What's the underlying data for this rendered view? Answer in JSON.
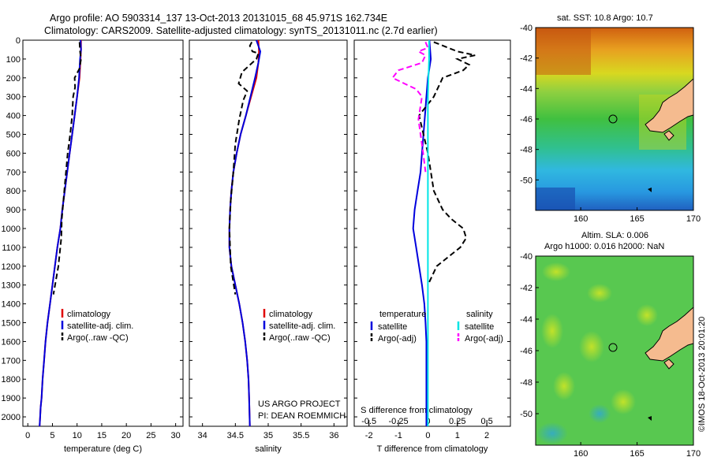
{
  "title_line1": "Argo profile: AO 5903314_137 13-Oct-2013 20131015_68 45.971S 162.734E",
  "title_line2": "Climatology: CARS2009. Satellite-adjusted climatology: synTS_20131011.nc (2.7d earlier)",
  "credit": "©IMOS 18-Oct-2013 20:01:20",
  "project_line1": "US ARGO PROJECT",
  "project_line2": "PI: DEAN ROEMMICH",
  "colors": {
    "climatology": "#e00000",
    "satellite": "#0000dd",
    "argo": "#000000",
    "sat_salinity": "#00e5e5",
    "argo_salinity": "#ff00ff",
    "land": "#f5bb8f"
  },
  "chart_data": [
    {
      "type": "line",
      "xlabel": "temperature (deg C)",
      "ylabel": "",
      "xlim": [
        -1,
        31.5
      ],
      "ylim": [
        2050,
        0
      ],
      "xticks": [
        0,
        5,
        10,
        15,
        20,
        25,
        30
      ],
      "yticks": [
        0,
        100,
        200,
        300,
        400,
        500,
        600,
        700,
        800,
        900,
        1000,
        1100,
        1200,
        1300,
        1400,
        1500,
        1600,
        1700,
        1800,
        1900,
        2000
      ],
      "legend": [
        "climatology",
        "satellite-adj. clim.",
        "Argo(..raw -QC)"
      ],
      "legend_position": "lower-right",
      "series": [
        {
          "name": "climatology",
          "style": "solid",
          "x": [
            10.8,
            10.8,
            10.7,
            10.5,
            10.0,
            9.5,
            9.0,
            8.5,
            8.0,
            7.5,
            7.0,
            6.6,
            6.0,
            5.5,
            5.0,
            4.5,
            4.0,
            3.6,
            3.3,
            3.0,
            2.8,
            2.6,
            2.5,
            2.4
          ],
          "y": [
            0,
            50,
            100,
            200,
            300,
            400,
            500,
            600,
            700,
            800,
            900,
            1000,
            1100,
            1200,
            1300,
            1400,
            1500,
            1600,
            1700,
            1800,
            1900,
            1950,
            2000,
            2050
          ]
        },
        {
          "name": "satellite-adj. clim.",
          "style": "solid",
          "x": [
            10.7,
            10.8,
            10.6,
            10.4,
            10.0,
            9.5,
            9.0,
            8.5,
            8.0,
            7.5,
            7.0,
            6.6,
            6.0,
            5.5,
            5.0,
            4.5,
            4.0,
            3.6,
            3.3,
            3.0,
            2.8,
            2.6,
            2.5,
            2.4
          ],
          "y": [
            0,
            50,
            100,
            200,
            300,
            400,
            500,
            600,
            700,
            800,
            900,
            1000,
            1100,
            1200,
            1300,
            1400,
            1500,
            1600,
            1700,
            1800,
            1900,
            1950,
            2000,
            2050
          ]
        },
        {
          "name": "Argo(..raw -QC)",
          "style": "dashed",
          "x": [
            10.5,
            10.6,
            10.8,
            10.5,
            9.5,
            9.6,
            9.2,
            9.0,
            8.6,
            8.1,
            7.4,
            6.9,
            6.8,
            6.2,
            5.2
          ],
          "y": [
            10,
            60,
            100,
            150,
            200,
            250,
            300,
            400,
            500,
            600,
            800,
            950,
            1050,
            1200,
            1350
          ]
        }
      ]
    },
    {
      "type": "line",
      "xlabel": "salinity",
      "ylabel": "",
      "xlim": [
        33.8,
        36.2
      ],
      "ylim": [
        2050,
        0
      ],
      "xticks": [
        34,
        34.5,
        35,
        35.5,
        36
      ],
      "yticks": [
        0,
        100,
        200,
        300,
        400,
        500,
        600,
        700,
        800,
        900,
        1000,
        1100,
        1200,
        1300,
        1400,
        1500,
        1600,
        1700,
        1800,
        1900,
        2000
      ],
      "legend": [
        "climatology",
        "satellite-adj. clim.",
        "Argo(..raw -QC)"
      ],
      "legend_position": "lower-right",
      "series": [
        {
          "name": "climatology",
          "style": "solid",
          "x": [
            34.85,
            34.86,
            34.85,
            34.82,
            34.74,
            34.66,
            34.58,
            34.52,
            34.47,
            34.44,
            34.42,
            34.41,
            34.41,
            34.44,
            34.5,
            34.56,
            34.61,
            34.65,
            34.68,
            34.7,
            34.71,
            34.72
          ],
          "y": [
            0,
            60,
            120,
            200,
            300,
            400,
            500,
            600,
            700,
            800,
            900,
            1000,
            1100,
            1200,
            1300,
            1400,
            1500,
            1600,
            1700,
            1800,
            1900,
            2050
          ]
        },
        {
          "name": "satellite-adj. clim.",
          "style": "solid",
          "x": [
            34.82,
            34.88,
            34.85,
            34.8,
            34.73,
            34.66,
            34.58,
            34.52,
            34.47,
            34.44,
            34.42,
            34.41,
            34.41,
            34.44,
            34.5,
            34.56,
            34.61,
            34.65,
            34.68,
            34.7,
            34.71,
            34.72
          ],
          "y": [
            0,
            60,
            120,
            200,
            300,
            400,
            500,
            600,
            700,
            800,
            900,
            1000,
            1100,
            1200,
            1300,
            1400,
            1500,
            1600,
            1700,
            1800,
            1900,
            2050
          ]
        },
        {
          "name": "Argo(..raw -QC)",
          "style": "dashed",
          "x": [
            34.75,
            34.72,
            34.76,
            34.85,
            34.82,
            34.6,
            34.55,
            34.68,
            34.62,
            34.56,
            34.5,
            34.47,
            34.43,
            34.41,
            34.43,
            34.5
          ],
          "y": [
            10,
            30,
            60,
            70,
            100,
            170,
            230,
            270,
            320,
            420,
            550,
            700,
            850,
            1000,
            1200,
            1350
          ]
        }
      ]
    },
    {
      "type": "line",
      "xlabel": "T difference from climatology",
      "x2label": "S difference from climatology",
      "ylabel": "",
      "xlim": [
        -2.5,
        2.8
      ],
      "x2lim": [
        -0.625,
        0.7
      ],
      "ylim": [
        2050,
        0
      ],
      "xticks": [
        -2,
        -1,
        0,
        1,
        2
      ],
      "x2ticks": [
        -0.5,
        -0.25,
        0,
        0.25,
        0.5
      ],
      "x2tick_labels": [
        "-0.5",
        "-0.25",
        "0",
        "0.25",
        "0.5"
      ],
      "yticks": [
        0,
        100,
        200,
        300,
        400,
        500,
        600,
        700,
        800,
        900,
        1000,
        1100,
        1200,
        1300,
        1400,
        1500,
        1600,
        1700,
        1800,
        1900,
        2000
      ],
      "legend_groups": [
        {
          "heading": "temperature",
          "items": [
            "satellite",
            "Argo(-adj)"
          ]
        },
        {
          "heading": "salinity",
          "items": [
            "satellite",
            "Argo(-adj)"
          ]
        }
      ],
      "legend_position": "lower-center",
      "series": [
        {
          "name": "temperature satellite",
          "axis": "T",
          "style": "solid",
          "x": [
            0.05,
            0.1,
            0.0,
            -0.05,
            -0.1,
            -0.15,
            -0.2,
            -0.25,
            -0.35,
            -0.45,
            -0.5,
            -0.4,
            -0.3,
            -0.2,
            -0.12,
            -0.08,
            -0.05,
            -0.05,
            -0.05,
            -0.05,
            -0.05,
            -0.05
          ],
          "y": [
            0,
            100,
            200,
            300,
            400,
            500,
            600,
            700,
            800,
            900,
            1000,
            1100,
            1200,
            1300,
            1400,
            1500,
            1600,
            1700,
            1800,
            1900,
            2000,
            2050
          ]
        },
        {
          "name": "temperature Argo(-adj)",
          "axis": "T",
          "style": "dashed",
          "x": [
            0.2,
            1.0,
            1.6,
            1.0,
            1.4,
            1.2,
            0.5,
            0.2,
            -0.3,
            0.0,
            0.2,
            0.5,
            0.8,
            1.2,
            1.3,
            1.1,
            0.7,
            0.3,
            0.0
          ],
          "y": [
            10,
            60,
            80,
            100,
            130,
            160,
            200,
            300,
            400,
            600,
            800,
            900,
            950,
            1000,
            1050,
            1100,
            1150,
            1200,
            1300
          ]
        },
        {
          "name": "salinity satellite",
          "axis": "S",
          "style": "solid",
          "x": [
            0.01,
            0.01,
            0.005,
            0.0,
            0.0,
            0.0,
            0.0,
            0.0,
            0.0,
            0.0,
            0.0,
            0.0,
            0.0,
            0.0,
            0.0,
            0.0
          ],
          "y": [
            0,
            100,
            200,
            300,
            400,
            500,
            600,
            800,
            1000,
            1200,
            1400,
            1600,
            1800,
            1900,
            2000,
            2050
          ]
        },
        {
          "name": "salinity Argo(-adj)",
          "axis": "S",
          "style": "dashed",
          "x": [
            -0.02,
            0.0,
            -0.08,
            -0.02,
            -0.05,
            -0.25,
            -0.3,
            -0.2,
            -0.1,
            -0.05,
            -0.08,
            -0.04,
            -0.02
          ],
          "y": [
            10,
            40,
            60,
            80,
            120,
            160,
            200,
            230,
            260,
            300,
            420,
            600,
            700
          ]
        }
      ]
    },
    {
      "type": "heatmap",
      "title": "sat. SST: 10.8 Argo: 10.7",
      "xlim": [
        156,
        170
      ],
      "ylim": [
        -52,
        -40
      ],
      "xticks": [
        160,
        165,
        170
      ],
      "yticks": [
        -40,
        -42,
        -44,
        -46,
        -48,
        -50
      ],
      "argo_position": {
        "lon": 162.734,
        "lat": -45.971
      }
    },
    {
      "type": "heatmap",
      "title": "Altim. SLA: 0.006",
      "subtitle": "Argo h1000: 0.016 h2000: NaN",
      "xlim": [
        156,
        170
      ],
      "ylim": [
        -52,
        -40
      ],
      "xticks": [
        160,
        165,
        170
      ],
      "yticks": [
        -40,
        -42,
        -44,
        -46,
        -48,
        -50
      ],
      "argo_position": {
        "lon": 162.734,
        "lat": -45.971
      }
    }
  ]
}
